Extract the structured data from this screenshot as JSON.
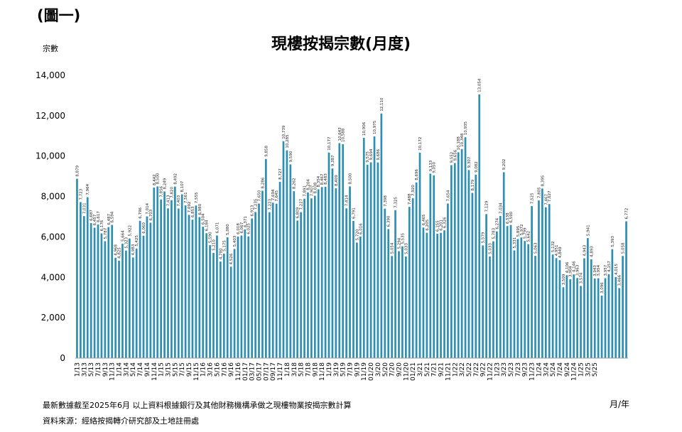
{
  "fig_label": "(圖一)",
  "chart_data": {
    "type": "bar",
    "title": "現樓按揭宗數(月度)",
    "ylabel": "宗數",
    "xlabel": "月/年",
    "ylim": [
      0,
      14000
    ],
    "yticks": [
      "0",
      "2,000",
      "4,000",
      "6,000",
      "8,000",
      "10,000",
      "12,000",
      "14,000"
    ],
    "grid": false,
    "color": "#2e8fb2",
    "x_tick_labels": [
      "1/13",
      "3/13",
      "5/13",
      "7/13",
      "9/13",
      "11/13",
      "1/14",
      "3/14",
      "5/14",
      "7/14",
      "9/14",
      "11/14",
      "1/15",
      "3/15",
      "5/15",
      "7/15",
      "9/15",
      "11/15",
      "1/16",
      "3/16",
      "5/16",
      "7/16",
      "9/16",
      "11/16",
      "01/17",
      "03/17",
      "05/17",
      "07/17",
      "09/17",
      "11/17",
      "1/18",
      "3/18",
      "5/18",
      "7/18",
      "9/18",
      "11/18",
      "1/19",
      "3/19",
      "5/19",
      "7/19",
      "9/19",
      "11/19",
      "01/20",
      "3/20",
      "5/20",
      "7/20",
      "9/20",
      "11/20",
      "01/21",
      "3/21",
      "5/21",
      "7/21",
      "9/21",
      "11/21",
      "1/22",
      "3/22",
      "5/22",
      "7/22",
      "9/22",
      "11/22",
      "1/23",
      "3/23",
      "5/23",
      "7/23",
      "9/23",
      "11/23",
      "1/24",
      "3/24",
      "5/24",
      "7/24",
      "9/24",
      "11/24",
      "1/25",
      "3/25",
      "5/25"
    ],
    "values": [
      8879,
      7723,
      7031,
      7964,
      6687,
      6457,
      6617,
      6176,
      5787,
      6487,
      6594,
      4968,
      4825,
      5664,
      5323,
      5922,
      4983,
      5425,
      6796,
      6060,
      7014,
      6703,
      8442,
      8500,
      7856,
      8249,
      7413,
      7820,
      8492,
      7403,
      8107,
      7561,
      7092,
      6853,
      7555,
      6980,
      6504,
      6184,
      5590,
      5210,
      6071,
      4780,
      5175,
      5980,
      4526,
      5403,
      6018,
      6067,
      6371,
      6025,
      6913,
      7235,
      7650,
      8286,
      9858,
      7223,
      7694,
      7645,
      8727,
      10739,
      10285,
      9590,
      8262,
      6809,
      7227,
      7891,
      8204,
      7907,
      8038,
      8354,
      8467,
      8483,
      10177,
      9387,
      8409,
      10643,
      10588,
      7414,
      8500,
      6791,
      5720,
      6016,
      10906,
      9575,
      9694,
      10975,
      9686,
      12110,
      7398,
      6390,
      5054,
      7325,
      5294,
      5535,
      5033,
      7488,
      7920,
      8696,
      10172,
      6465,
      6205,
      9133,
      9050,
      6155,
      6201,
      6326,
      7654,
      9552,
      9656,
      10188,
      10348,
      10935,
      9307,
      8179,
      9082,
      13054,
      5579,
      7129,
      5033,
      5783,
      6274,
      7034,
      9202,
      6538,
      6590,
      5331,
      5895,
      5972,
      5799,
      5642,
      7525,
      5063,
      7805,
      8395,
      7467,
      7627,
      5132,
      4951,
      4849,
      3509,
      4106,
      3904,
      4146,
      3963,
      3574,
      4943,
      5941,
      4893,
      3943,
      3954,
      3096,
      3957,
      4157,
      5393,
      4015,
      3466,
      5058,
      6772
    ]
  },
  "notes": {
    "line1": "最新數據截至2025年6月    以上資料根據銀行及其他財務機構承做之現樓物業按揭宗數計算",
    "line2": "資料來源：經絡按揭轉介研究部及土地註冊處"
  }
}
